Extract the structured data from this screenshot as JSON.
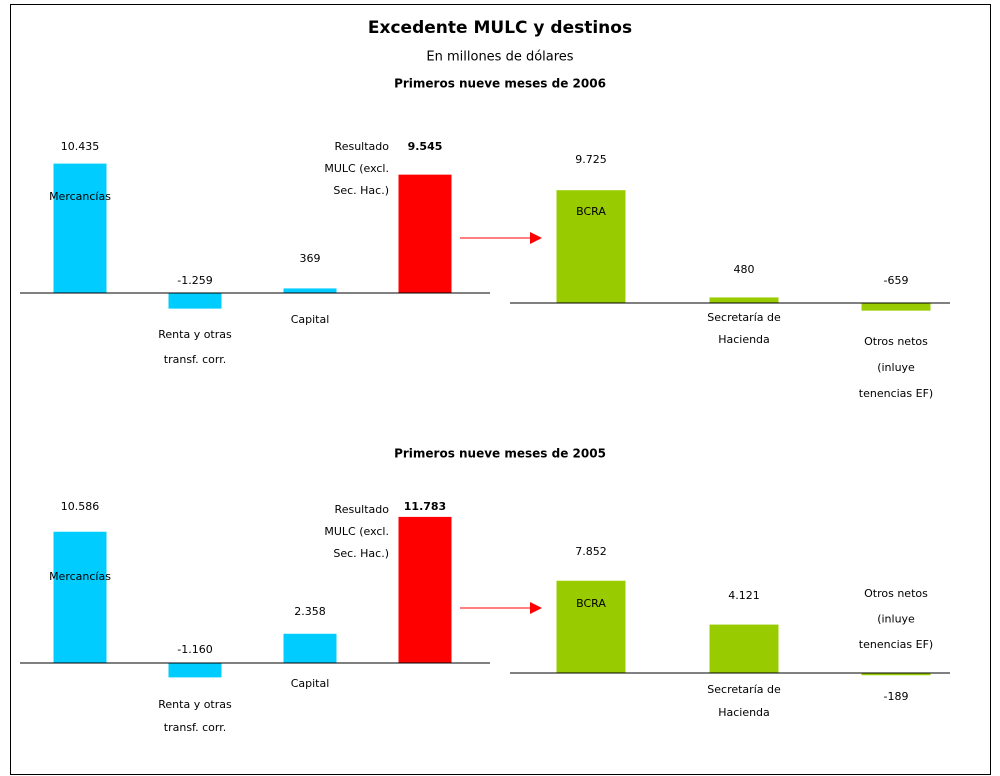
{
  "header": {
    "title": "Excedente MULC y destinos",
    "subtitle": "En millones de dólares"
  },
  "chart_data": [
    {
      "type": "bar",
      "title": "Primeros nueve meses de 2006",
      "categories": [
        [
          "Mercancías"
        ],
        [
          "Renta y otras",
          "transf. corr."
        ],
        [
          "Capital"
        ],
        [
          "Resultado",
          "MULC (excl.",
          "Sec. Hac.)"
        ]
      ],
      "values": [
        10435,
        -1259,
        369,
        9545
      ],
      "value_labels": [
        "10.435",
        "-1.259",
        "369",
        "9.545"
      ],
      "colors": [
        "#00ccff",
        "#00ccff",
        "#00ccff",
        "#ff0000"
      ]
    },
    {
      "type": "bar",
      "categories": [
        [
          "BCRA"
        ],
        [
          "Secretaría de",
          "Hacienda"
        ],
        [
          "Otros netos",
          "(inluye",
          "tenencias EF)"
        ]
      ],
      "values": [
        9725,
        480,
        -659
      ],
      "value_labels": [
        "9.725",
        "480",
        "-659"
      ],
      "color": "#99cc00"
    },
    {
      "type": "bar",
      "title": "Primeros nueve meses de 2005",
      "categories": [
        [
          "Mercancías"
        ],
        [
          "Renta y otras",
          "transf. corr."
        ],
        [
          "Capital"
        ],
        [
          "Resultado",
          "MULC (excl.",
          "Sec. Hac.)"
        ]
      ],
      "values": [
        10586,
        -1160,
        2358,
        11783
      ],
      "value_labels": [
        "10.586",
        "-1.160",
        "2.358",
        "11.783"
      ],
      "colors": [
        "#00ccff",
        "#00ccff",
        "#00ccff",
        "#ff0000"
      ]
    },
    {
      "type": "bar",
      "categories": [
        [
          "BCRA"
        ],
        [
          "Secretaría de",
          "Hacienda"
        ],
        [
          "Otros netos",
          "(inluye",
          "tenencias EF)"
        ]
      ],
      "values": [
        7852,
        4121,
        -189
      ],
      "value_labels": [
        "7.852",
        "4.121",
        "-189"
      ],
      "color": "#99cc00"
    }
  ]
}
